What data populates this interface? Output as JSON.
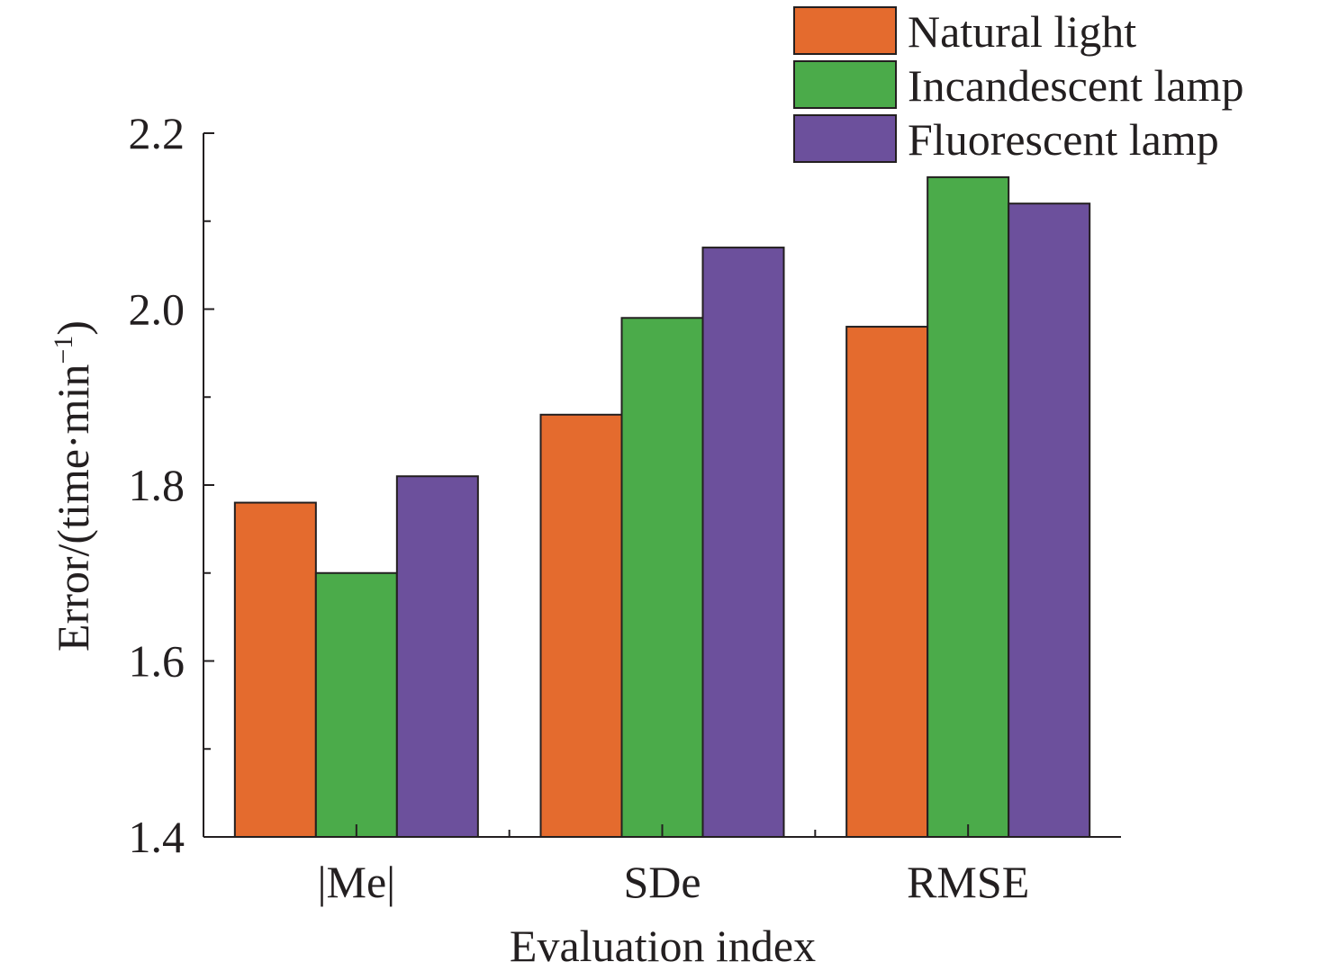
{
  "chart_data": {
    "type": "bar",
    "categories": [
      "|Me|",
      "SDe",
      "RMSE"
    ],
    "series": [
      {
        "name": "Natural light",
        "values": [
          1.78,
          1.88,
          1.98
        ]
      },
      {
        "name": "Incandescent lamp",
        "values": [
          1.7,
          1.99,
          2.15
        ]
      },
      {
        "name": "Fluorescent lamp",
        "values": [
          1.81,
          2.07,
          2.12
        ]
      }
    ],
    "title": "",
    "xlabel": "Evaluation index",
    "ylabel": "Error/(time·min",
    "ylabel_superscript": "−1",
    "ylabel_close": ")",
    "ylim": [
      1.4,
      2.2
    ],
    "yticks": [
      "1.4",
      "1.6",
      "1.8",
      "2.0",
      "2.2"
    ],
    "grid": false,
    "legend_position": "top-right",
    "colors": [
      "#e46b2e",
      "#4bab4a",
      "#6c509c"
    ]
  }
}
